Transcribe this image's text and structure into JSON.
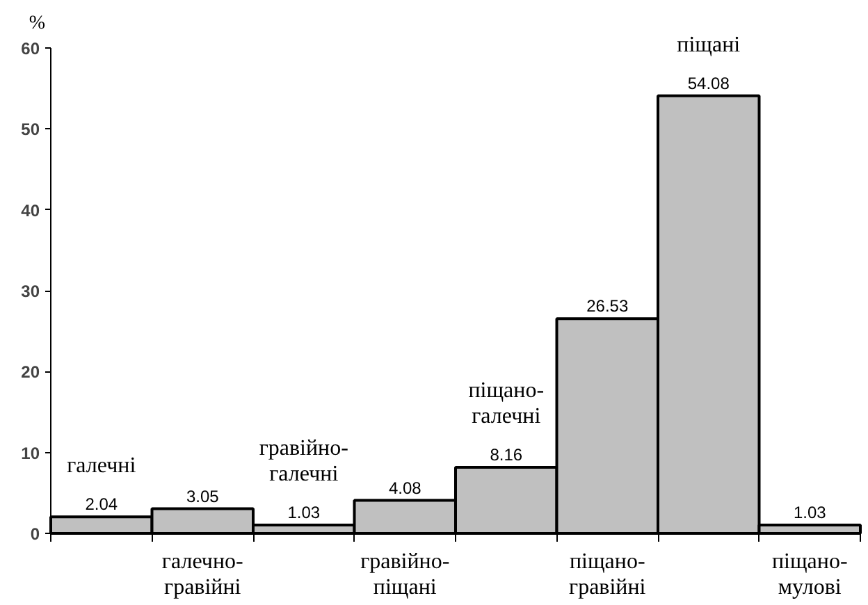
{
  "chart_data": {
    "type": "bar",
    "ylabel": "%",
    "categories": [
      "галечні",
      "галечно-\nгравійні",
      "гравійно-\nгалечні",
      "гравійно-\nпіщані",
      "піщано-\nгалечні",
      "піщано-\nгравійні",
      "піщані",
      "піщано-\nмулові"
    ],
    "values": [
      2.04,
      3.05,
      1.03,
      4.08,
      8.16,
      26.53,
      54.08,
      1.03
    ],
    "color": "#c0c0c0",
    "ylim": [
      0,
      60
    ],
    "yticks": [
      0,
      10,
      20,
      30,
      40,
      50,
      60
    ],
    "data_labels": true,
    "grid": false
  }
}
